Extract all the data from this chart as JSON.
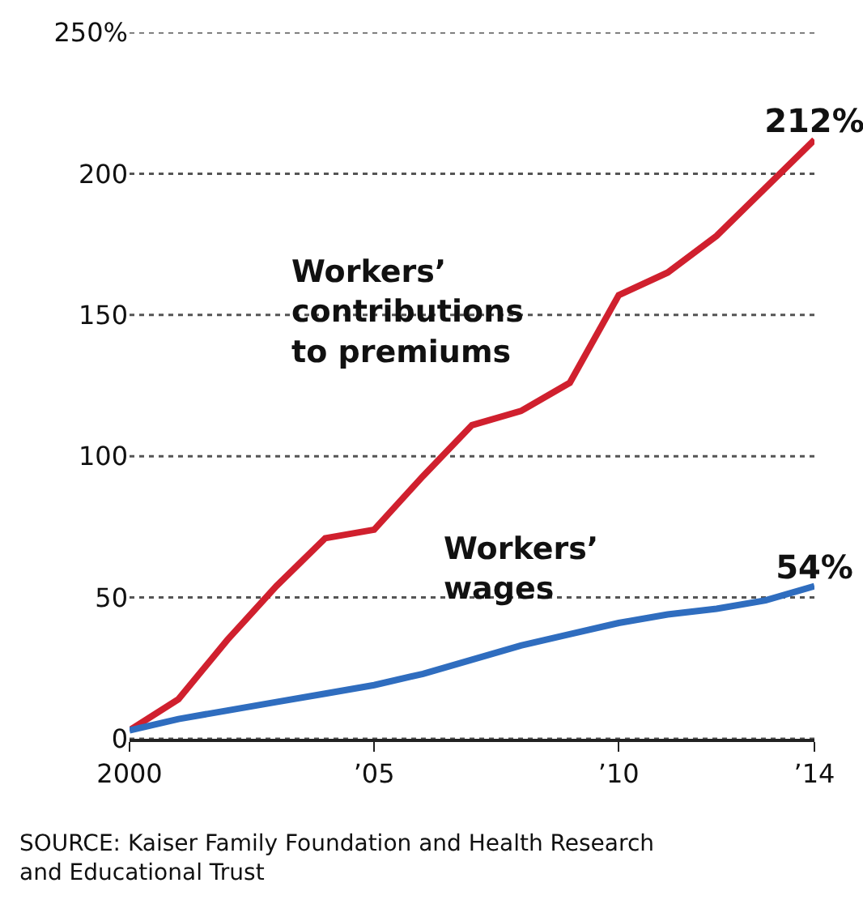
{
  "chart_data": {
    "type": "line",
    "x": [
      2000,
      2001,
      2002,
      2003,
      2004,
      2005,
      2006,
      2007,
      2008,
      2009,
      2010,
      2011,
      2012,
      2013,
      2014
    ],
    "series": [
      {
        "name": "Workers’ contributions to premiums",
        "color": "#d0202e",
        "values": [
          3,
          14,
          35,
          54,
          71,
          74,
          93,
          111,
          116,
          126,
          157,
          165,
          178,
          195,
          212
        ],
        "value_labels": [
          null,
          null,
          null,
          null,
          null,
          null,
          null,
          null,
          null,
          null,
          null,
          null,
          null,
          null,
          "212%"
        ]
      },
      {
        "name": "Workers’ wages",
        "color": "#2f6dbf",
        "values": [
          3,
          7,
          10,
          13,
          16,
          19,
          23,
          28,
          33,
          37,
          41,
          44,
          46,
          49,
          54
        ],
        "value_labels": [
          null,
          null,
          null,
          null,
          null,
          null,
          null,
          null,
          null,
          null,
          null,
          null,
          null,
          null,
          "54%"
        ]
      }
    ],
    "xlim": [
      2000,
      2014
    ],
    "xticks": [
      2000,
      {
        "value": 2005,
        "label": "’05"
      },
      {
        "value": 2010,
        "label": "’10"
      },
      {
        "value": 2014,
        "label": "’14"
      }
    ],
    "ylim": [
      0,
      250
    ],
    "yticks": [
      0,
      50,
      100,
      150,
      200,
      {
        "value": 250,
        "label": "250%"
      }
    ],
    "grid": "y",
    "legend": false,
    "marker": "none",
    "line_style": "solid",
    "annotations": [
      "SOURCE: Kaiser Family Foundation and Health Research and Educational Trust"
    ]
  }
}
